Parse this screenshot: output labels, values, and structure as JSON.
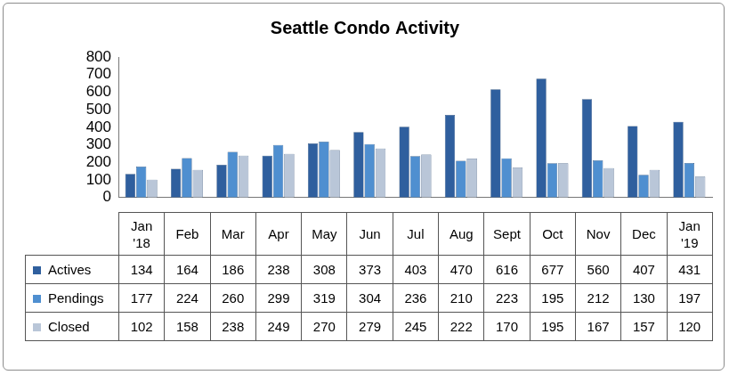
{
  "chart_data": {
    "type": "bar",
    "title": "Seattle Condo Activity",
    "categories": [
      "Jan '18",
      "Feb",
      "Mar",
      "Apr",
      "May",
      "Jun",
      "Jul",
      "Aug",
      "Sept",
      "Oct",
      "Nov",
      "Dec",
      "Jan '19"
    ],
    "series": [
      {
        "name": "Actives",
        "color": "#2f5f9e",
        "values": [
          134,
          164,
          186,
          238,
          308,
          373,
          403,
          470,
          616,
          677,
          560,
          407,
          431
        ]
      },
      {
        "name": "Pendings",
        "color": "#4f8fd0",
        "values": [
          177,
          224,
          260,
          299,
          319,
          304,
          236,
          210,
          223,
          195,
          212,
          130,
          197
        ]
      },
      {
        "name": "Closed",
        "color": "#b9c6d8",
        "values": [
          102,
          158,
          238,
          249,
          270,
          279,
          245,
          222,
          170,
          195,
          167,
          157,
          120
        ]
      }
    ],
    "ylim": [
      0,
      800
    ],
    "yticks": [
      0,
      100,
      200,
      300,
      400,
      500,
      600,
      700,
      800
    ],
    "grid": false,
    "tick_labels": "y"
  }
}
